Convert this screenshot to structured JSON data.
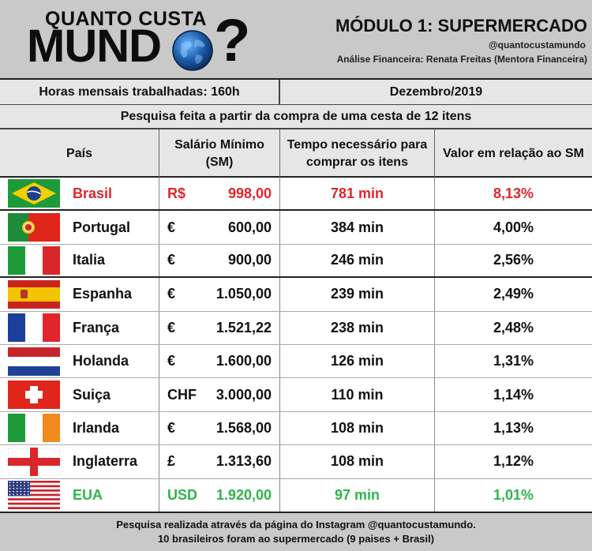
{
  "header": {
    "logo_top": "QUANTO CUSTA",
    "logo_bottom": "MUND",
    "logo_qmark": "?",
    "module_title": "MÓDULO 1: SUPERMERCADO",
    "handle": "@quantocustamundo",
    "analyst": "Análise Financeira: Renata Freitas (Mentora Financeira)"
  },
  "info": {
    "hours": "Horas mensais trabalhadas: 160h",
    "date": "Dezembro/2019",
    "survey": "Pesquisa feita a partir da compra de uma cesta de 12 itens"
  },
  "table": {
    "headers": {
      "country": "País",
      "salary": "Salário Mínimo (SM)",
      "time": "Tempo necessário para comprar os itens",
      "value": "Valor em relação ao SM"
    },
    "rows": [
      {
        "flag": "brazil-flag-icon",
        "country": "Brasil",
        "currency": "R$",
        "salary": "998,00",
        "time": "781 min",
        "value": "8,13%",
        "color": "#e0262b"
      },
      {
        "flag": "portugal-flag-icon",
        "country": "Portugal",
        "currency": "€",
        "salary": "600,00",
        "time": "384 min",
        "value": "4,00%",
        "color": "#111111"
      },
      {
        "flag": "italy-flag-icon",
        "country": "Italia",
        "currency": "€",
        "salary": "900,00",
        "time": "246 min",
        "value": "2,56%",
        "color": "#111111"
      },
      {
        "flag": "spain-flag-icon",
        "country": "Espanha",
        "currency": "€",
        "salary": "1.050,00",
        "time": "239 min",
        "value": "2,49%",
        "color": "#111111"
      },
      {
        "flag": "france-flag-icon",
        "country": "França",
        "currency": "€",
        "salary": "1.521,22",
        "time": "238 min",
        "value": "2,48%",
        "color": "#111111"
      },
      {
        "flag": "netherlands-flag-icon",
        "country": "Holanda",
        "currency": "€",
        "salary": "1.600,00",
        "time": "126 min",
        "value": "1,31%",
        "color": "#111111"
      },
      {
        "flag": "switzerland-flag-icon",
        "country": "Suiça",
        "currency": "CHF",
        "salary": "3.000,00",
        "time": "110 min",
        "value": "1,14%",
        "color": "#111111"
      },
      {
        "flag": "ireland-flag-icon",
        "country": "Irlanda",
        "currency": "€",
        "salary": "1.568,00",
        "time": "108 min",
        "value": "1,13%",
        "color": "#111111"
      },
      {
        "flag": "england-flag-icon",
        "country": "Inglaterra",
        "currency": "£",
        "salary": "1.313,60",
        "time": "108 min",
        "value": "1,12%",
        "color": "#111111"
      },
      {
        "flag": "usa-flag-icon",
        "country": "EUA",
        "currency": "USD",
        "salary": "1.920,00",
        "time": "97 min",
        "value": "1,01%",
        "color": "#2fb44a"
      }
    ]
  },
  "footer": {
    "line1": "Pesquisa realizada através da página do Instagram @quantocustamundo.",
    "line2": "10 brasileiros foram ao supermercado (9 paises + Brasil)"
  }
}
